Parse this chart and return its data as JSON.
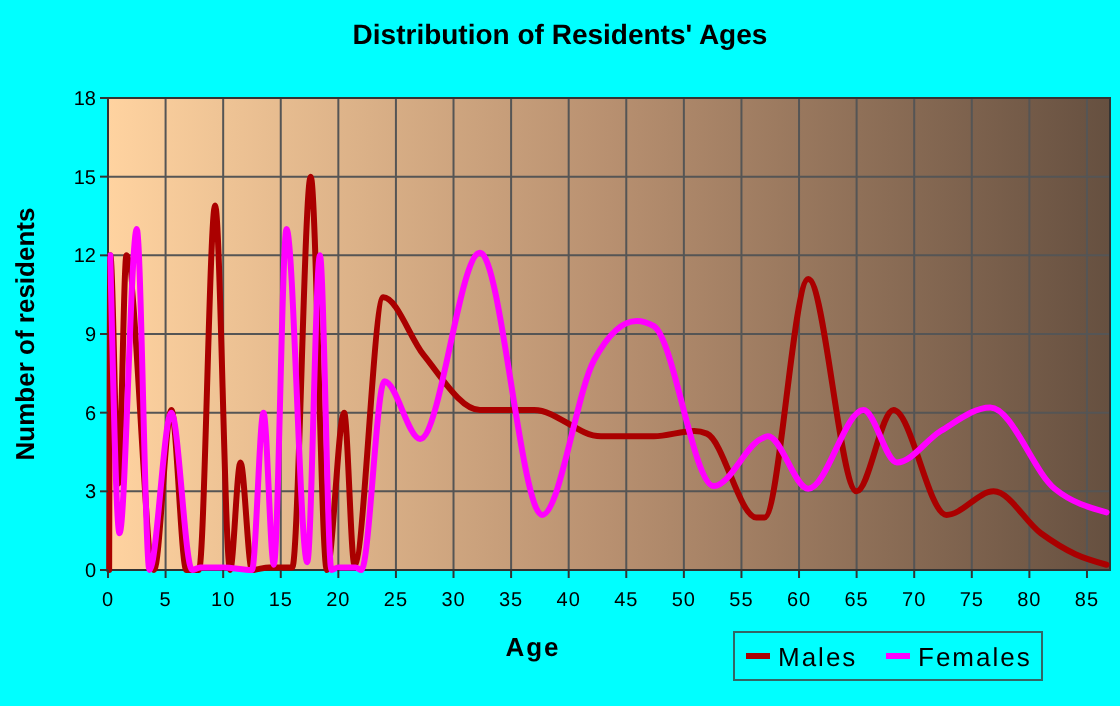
{
  "chart_data": {
    "type": "line",
    "title": "Distribution of Residents' Ages",
    "xlabel": "Age",
    "ylabel": "Number of residents",
    "xlim": [
      0,
      87
    ],
    "xticks": [
      0,
      5,
      10,
      15,
      20,
      25,
      30,
      35,
      40,
      45,
      50,
      55,
      60,
      65,
      70,
      75,
      80,
      85
    ],
    "ylim": [
      0,
      18
    ],
    "yticks": [
      0,
      3,
      6,
      9,
      12,
      15,
      18
    ],
    "grid": true,
    "legend": "bottom right",
    "marker": "none",
    "line_style": "solid",
    "series": [
      {
        "name": "Males",
        "color": "#aa0000",
        "x": [
          0.1,
          0.2,
          0.9,
          1.6,
          4,
          5.5,
          6.8,
          7.9,
          9.3,
          10.6,
          11.5,
          12.5,
          14,
          16,
          17.6,
          19,
          20.5,
          21.4,
          23.9,
          27.4,
          32.3,
          37,
          42.8,
          47.4,
          50.9,
          52,
          56.3,
          57,
          60.8,
          65,
          68.2,
          72.8,
          76.9,
          81,
          84,
          86.7
        ],
        "values": [
          0,
          12,
          3.3,
          12,
          0,
          6.1,
          0,
          0,
          13.9,
          0,
          4.1,
          0,
          0.1,
          0.1,
          15,
          0,
          6,
          0.2,
          10.4,
          8.2,
          6.1,
          6.1,
          5.1,
          5.1,
          5.3,
          5.2,
          2,
          2,
          11.1,
          3,
          6.1,
          2.1,
          3,
          1.4,
          0.6,
          0.2
        ]
      },
      {
        "name": "Females",
        "color": "#ff00ff",
        "x": [
          0.2,
          1,
          2.5,
          3.6,
          5.5,
          7.3,
          8,
          10,
          12.5,
          13.5,
          14.4,
          15.5,
          17.3,
          18.4,
          19.4,
          20,
          21.5,
          22,
          24,
          27.1,
          32.3,
          37.7,
          42.2,
          45.9,
          47.4,
          52.6,
          56.7,
          57.3,
          60.8,
          65.6,
          68.5,
          72.3,
          76.6,
          82.2,
          86.7
        ],
        "values": [
          12,
          1.4,
          13,
          0,
          6,
          0,
          0.1,
          0.1,
          0,
          6,
          0.2,
          13,
          0.3,
          12,
          0,
          0.1,
          0.1,
          0,
          7.2,
          5,
          12.1,
          2.1,
          8,
          9.5,
          9.3,
          3.2,
          5,
          5.1,
          3.1,
          6.1,
          4.1,
          5.3,
          6.2,
          3.1,
          2.2
        ]
      }
    ]
  }
}
